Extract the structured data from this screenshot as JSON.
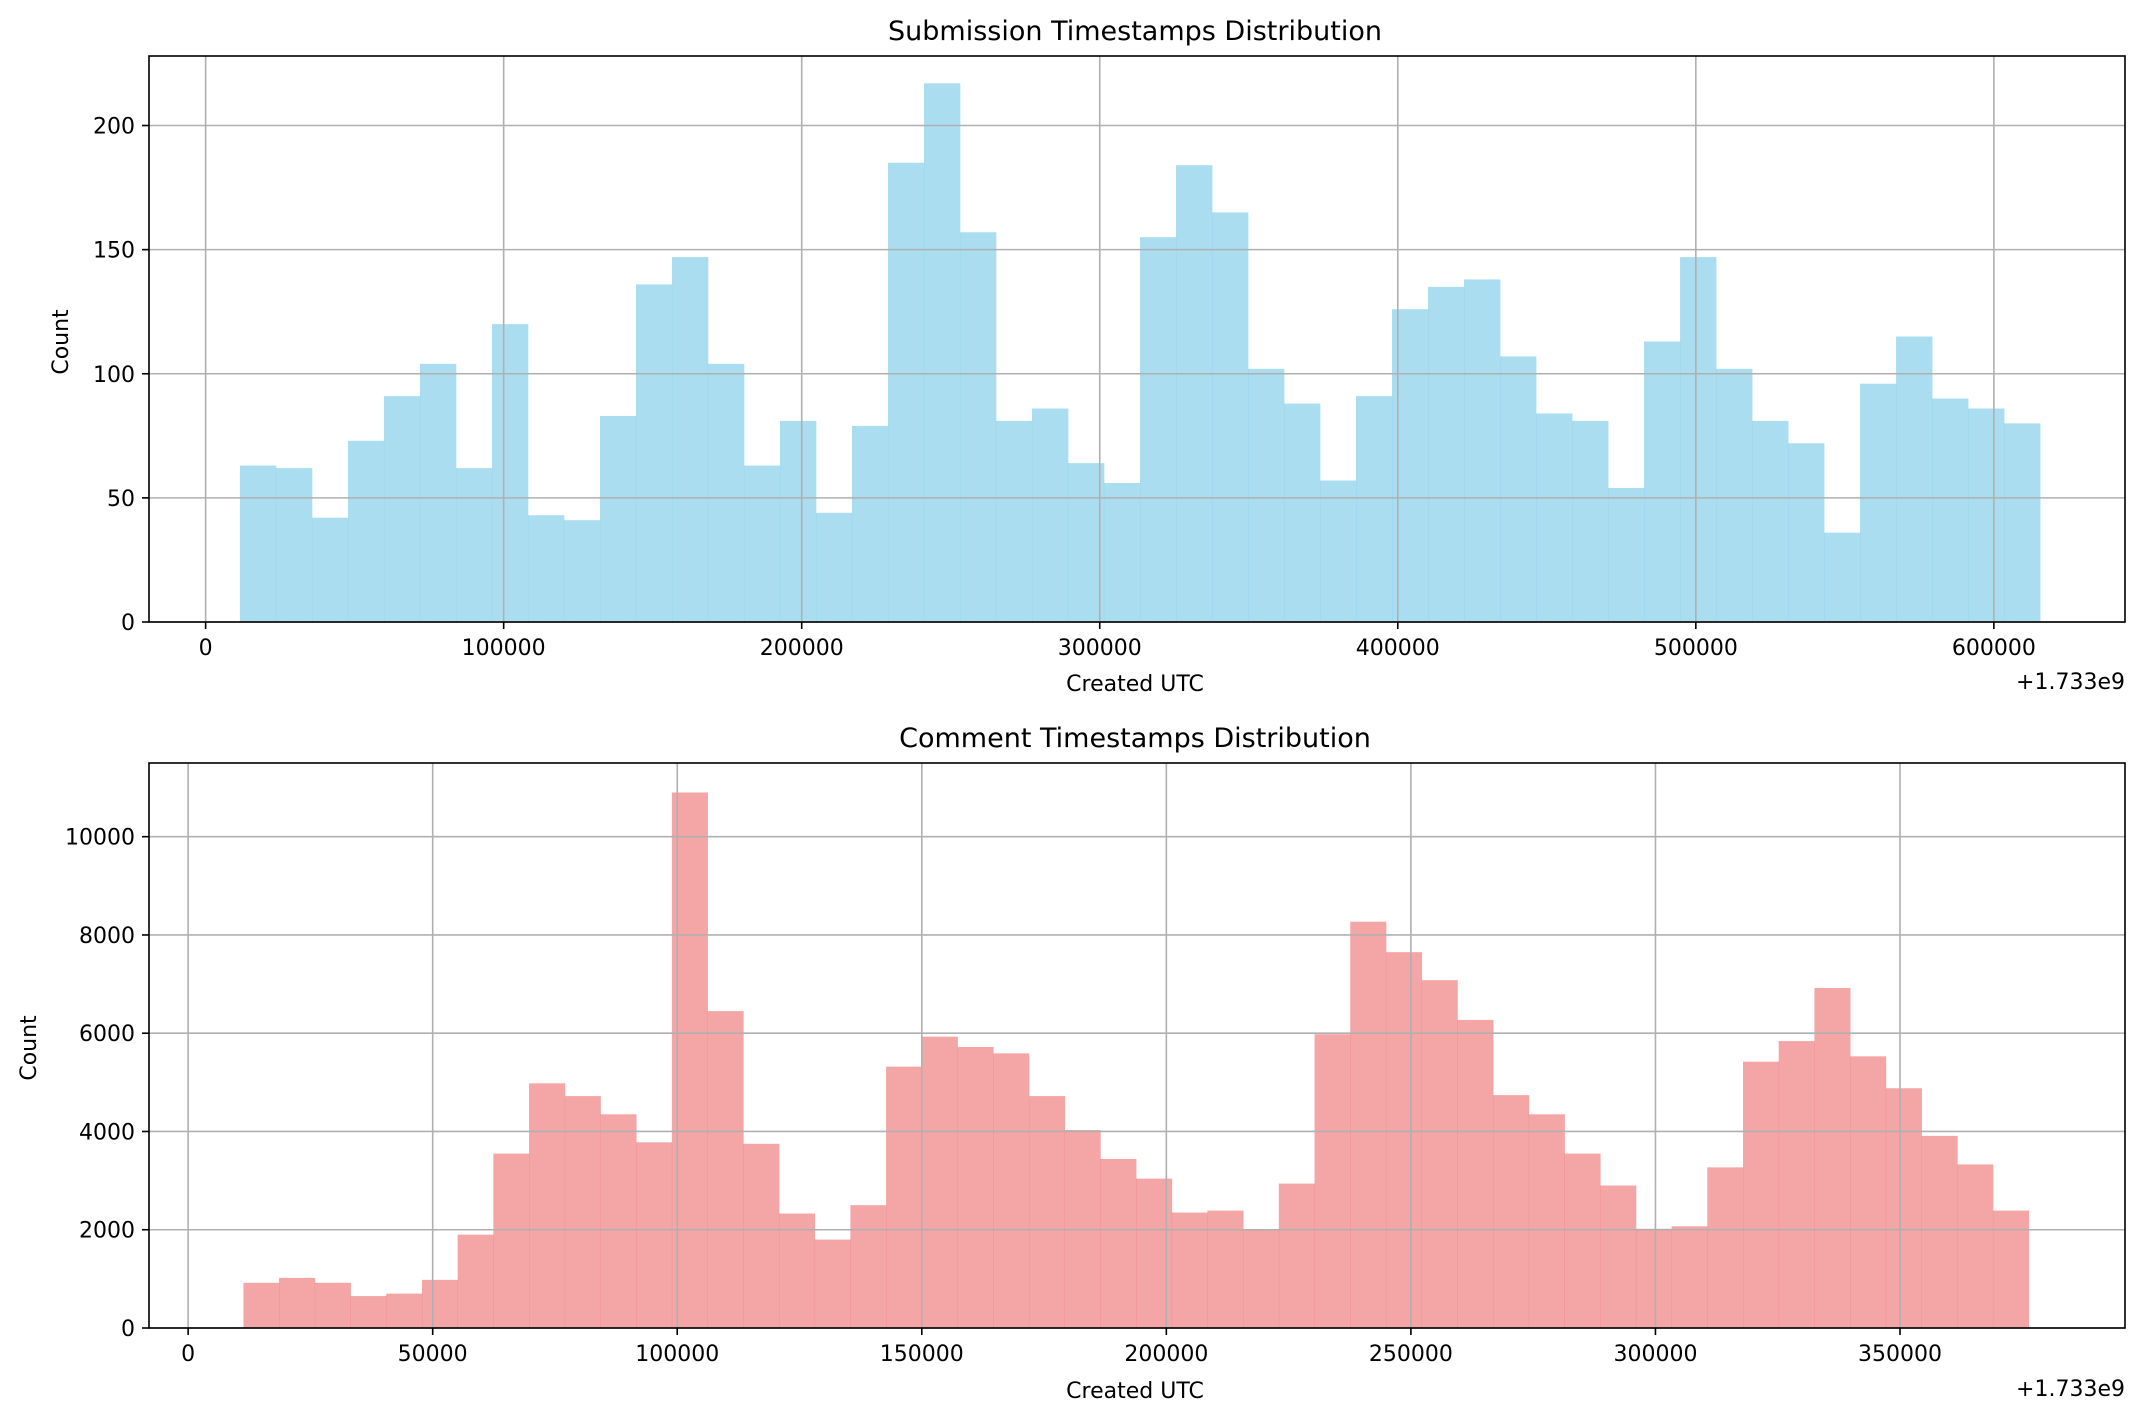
{
  "chart_data": [
    {
      "type": "bar",
      "title": "Submission Timestamps Distribution",
      "xlabel": "Created UTC",
      "ylabel": "Count",
      "x_offset_label": "+1.733e9",
      "color": "#87ceeb",
      "xlim": [
        -19000,
        644000
      ],
      "ylim": [
        0,
        228
      ],
      "xticks": [
        0,
        100000,
        200000,
        300000,
        400000,
        500000,
        600000
      ],
      "yticks": [
        0,
        50,
        100,
        150,
        200
      ],
      "grid": true,
      "bin_start": 11500,
      "bin_width": 12080,
      "values": [
        63,
        62,
        42,
        73,
        91,
        104,
        62,
        120,
        43,
        41,
        83,
        136,
        147,
        104,
        63,
        81,
        44,
        79,
        185,
        217,
        157,
        81,
        86,
        64,
        56,
        155,
        184,
        165,
        102,
        88,
        57,
        91,
        126,
        135,
        138,
        107,
        84,
        81,
        54,
        113,
        147,
        102,
        81,
        72,
        36,
        96,
        115,
        90,
        86,
        80
      ]
    },
    {
      "type": "bar",
      "title": "Comment Timestamps Distribution",
      "xlabel": "Created UTC",
      "ylabel": "Count",
      "x_offset_label": "+1.733e9",
      "color": "#f08080",
      "xlim": [
        -8000,
        396000
      ],
      "ylim": [
        0,
        11500
      ],
      "xticks": [
        0,
        50000,
        100000,
        150000,
        200000,
        250000,
        300000,
        350000
      ],
      "yticks": [
        0,
        2000,
        4000,
        6000,
        8000,
        10000
      ],
      "grid": true,
      "bin_start": 11300,
      "bin_width": 7300,
      "values": [
        920,
        1020,
        920,
        650,
        700,
        980,
        1900,
        3550,
        4980,
        4720,
        4350,
        3780,
        10900,
        6450,
        3750,
        2330,
        1800,
        2500,
        5320,
        5930,
        5720,
        5590,
        4720,
        4030,
        3440,
        3040,
        2350,
        2390,
        2000,
        2940,
        5980,
        8270,
        7650,
        7080,
        6270,
        4740,
        4350,
        3550,
        2900,
        2020,
        2070,
        3270,
        5420,
        5840,
        6920,
        5530,
        4880,
        3910,
        3330,
        2390
      ]
    }
  ]
}
